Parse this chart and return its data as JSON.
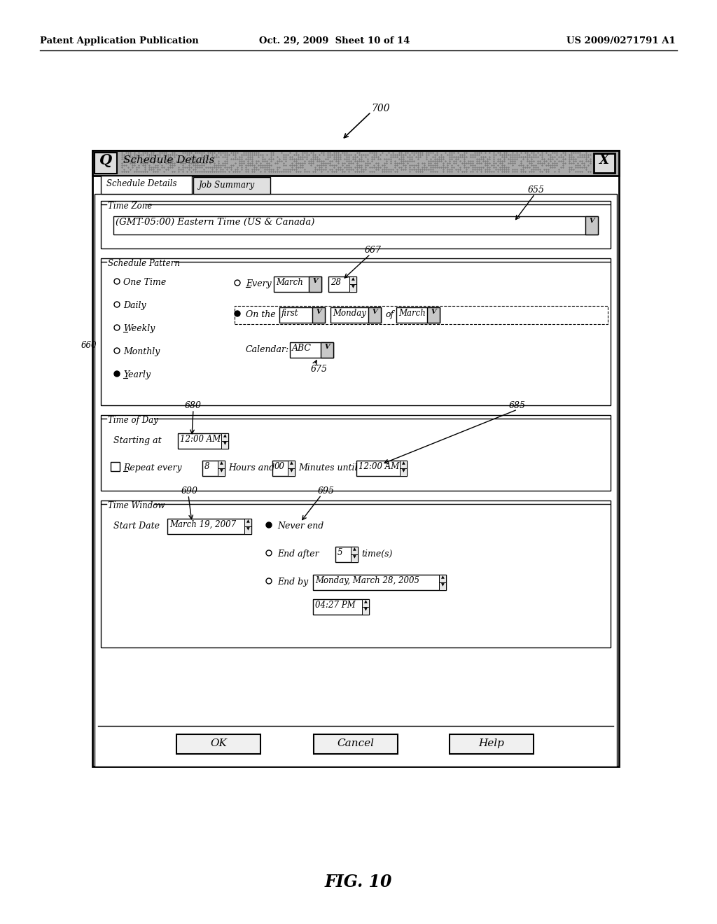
{
  "header_left": "Patent Application Publication",
  "header_mid": "Oct. 29, 2009  Sheet 10 of 14",
  "header_right": "US 2009/0271791 A1",
  "figure_label": "FIG. 10",
  "ref_700": "700",
  "dialog_title": "Schedule Details",
  "tab1": "Schedule Details",
  "tab2": "Job Summary",
  "section_timezone": "Time Zone",
  "timezone_value": "(GMT-05:00) Eastern Time (US & Canada)",
  "ref_655": "655",
  "section_schedule": "Schedule Pattern",
  "radio_onetime": "One Time",
  "radio_daily": "Daily",
  "radio_weekly": "Weekly",
  "radio_monthly": "Monthly",
  "radio_yearly": "Yearly",
  "ref_660": "660",
  "every_label": "Every",
  "every_month": "March",
  "every_day": "28",
  "ref_667": "667",
  "onthe_label": "On the",
  "onthe_first": "first",
  "onthe_day": "Monday",
  "onthe_of": "of",
  "onthe_month": "March",
  "calendar_label": "Calendar:",
  "calendar_value": "ABC",
  "ref_675": "675",
  "section_timeofday": "Time of Day",
  "starting_at": "Starting at",
  "starting_value": "12:00 AM",
  "ref_680": "680",
  "ref_685": "685",
  "repeat_label": "Repeat every",
  "repeat_hours": "8",
  "hours_label": "Hours and",
  "repeat_mins": "00",
  "mins_label": "Minutes until",
  "repeat_until": "12:00 AM",
  "section_timewindow": "Time Window",
  "startdate_label": "Start Date",
  "startdate_value": "March 19, 2007",
  "ref_690": "690",
  "ref_695": "695",
  "never_end": "Never end",
  "end_after": "End after",
  "end_after_val": "5",
  "times_label": "time(s)",
  "end_by": "End by",
  "endby_date": "Monday, March 28, 2005",
  "endby_time": "04:27 PM",
  "btn_ok": "OK",
  "btn_cancel": "Cancel",
  "btn_help": "Help",
  "bg_color": "#ffffff"
}
